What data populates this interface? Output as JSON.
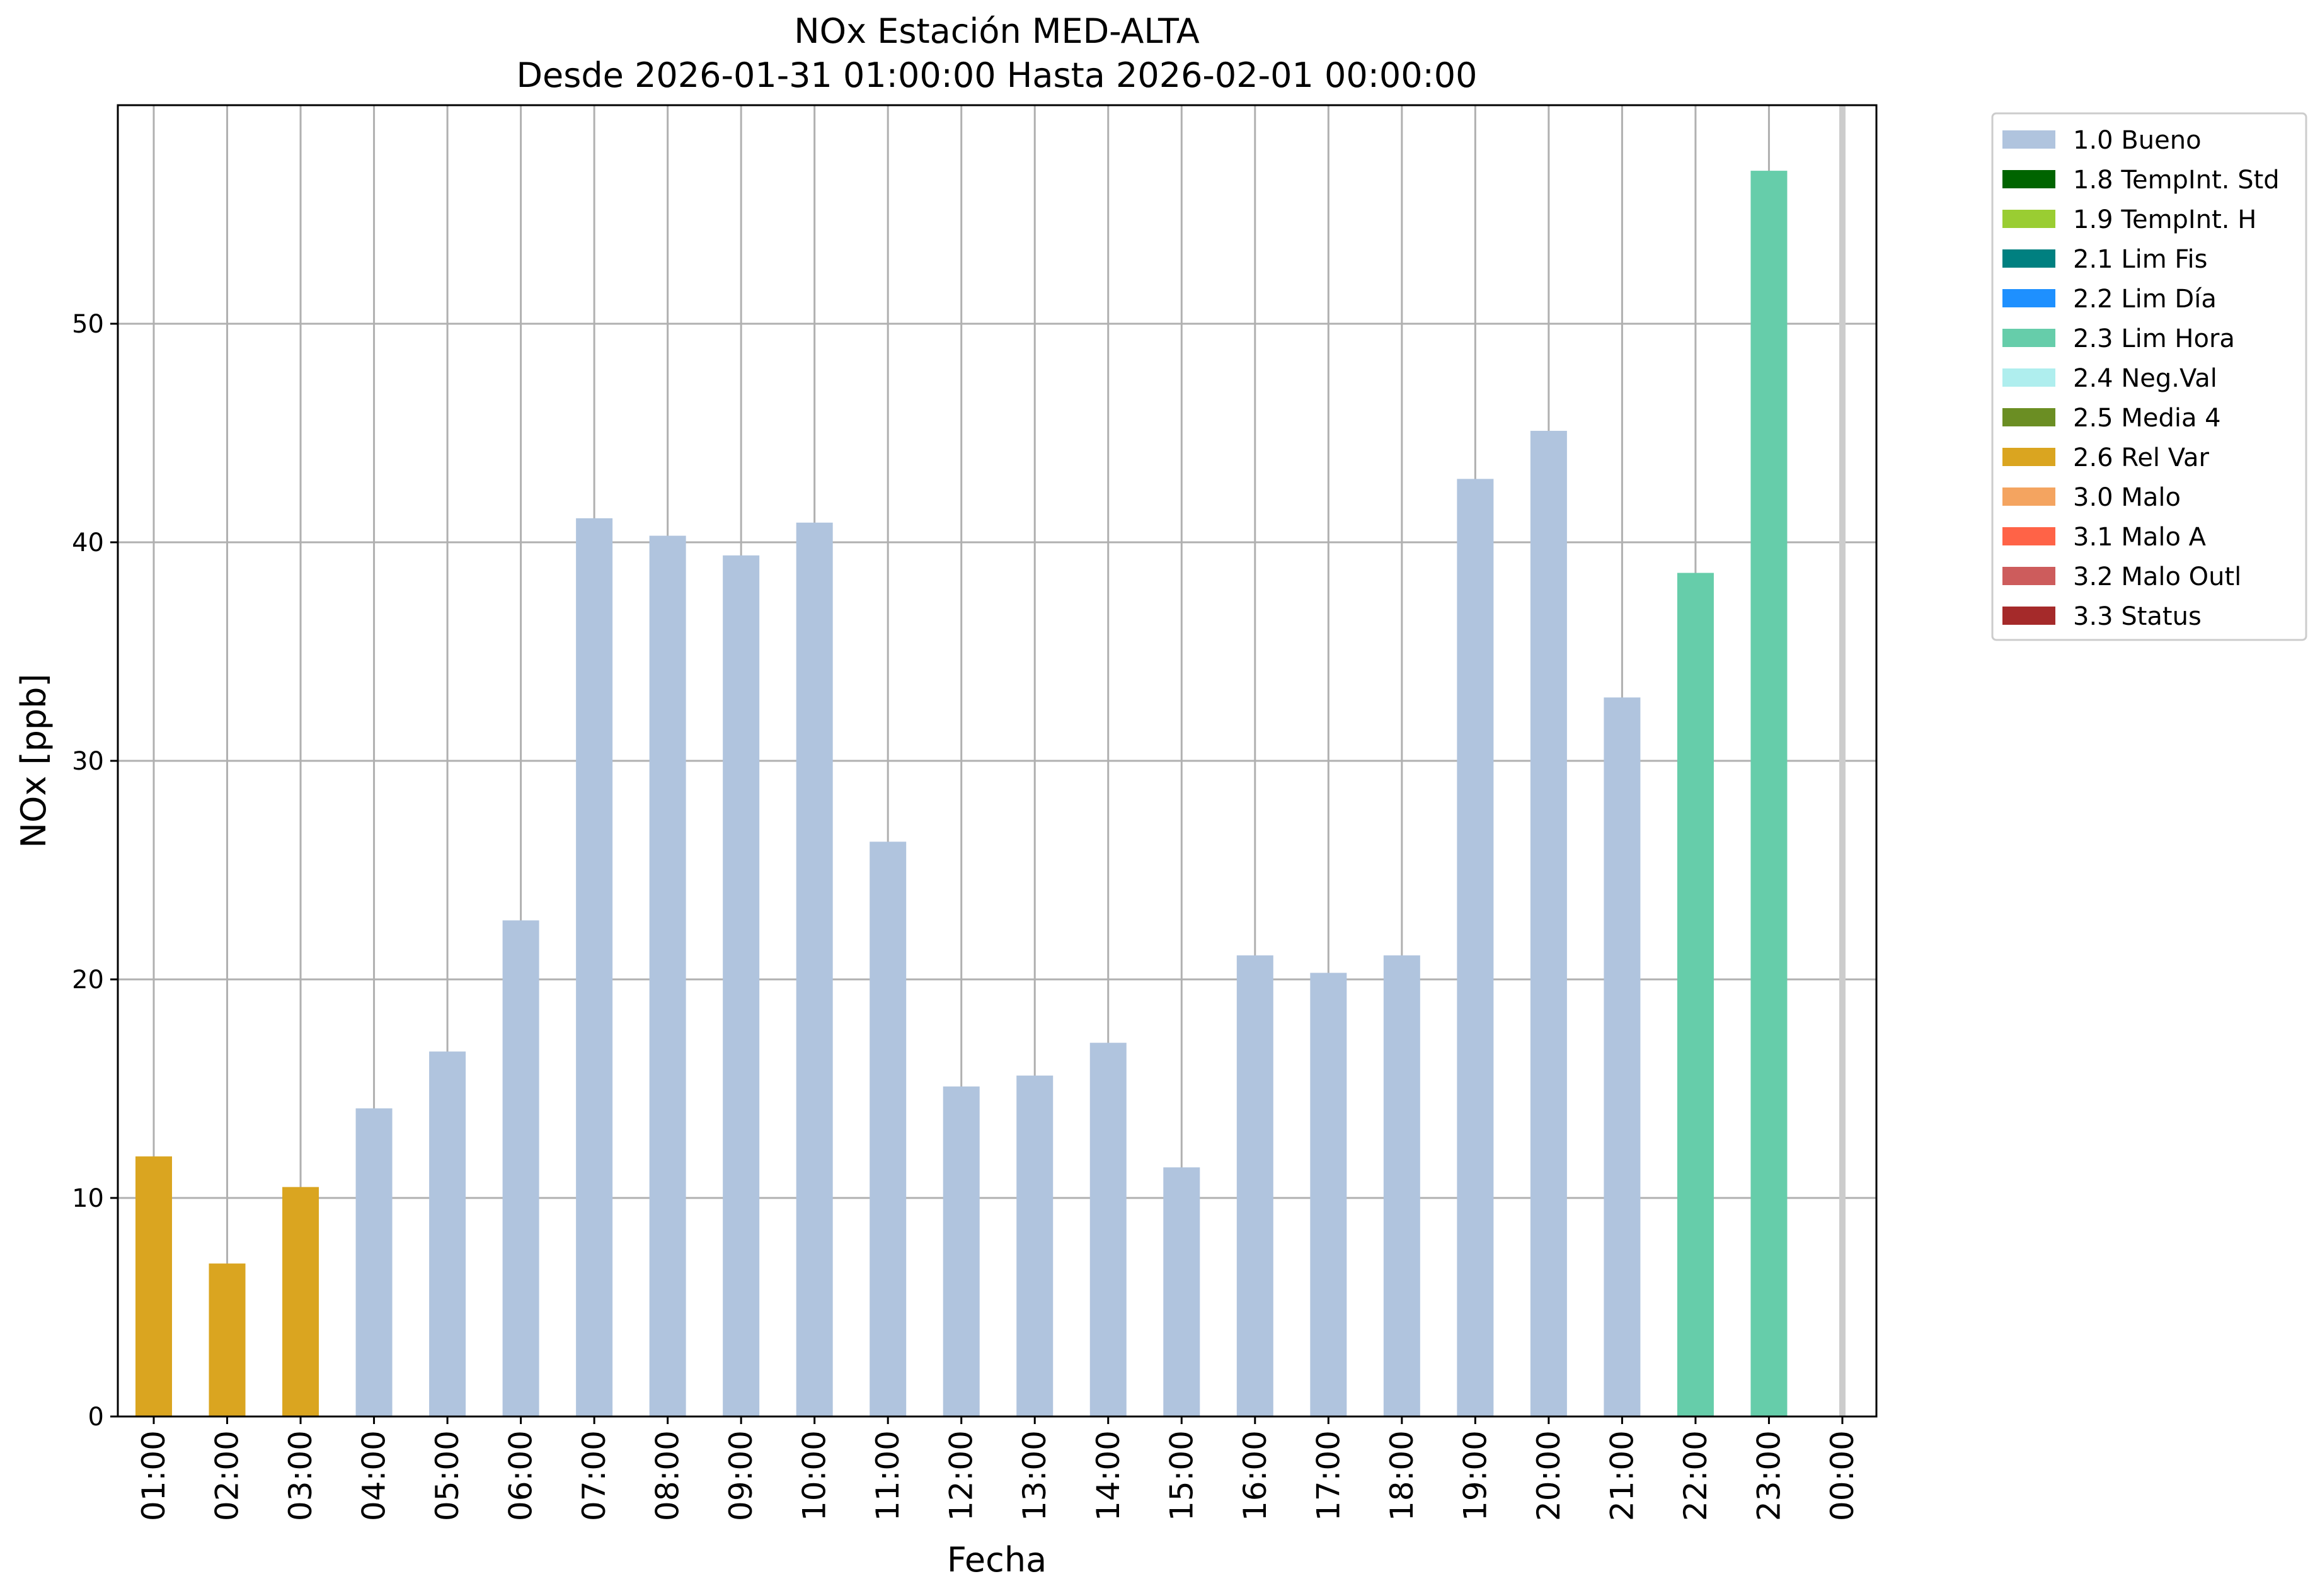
{
  "chart_data": {
    "type": "bar",
    "title": "NOx Estación MED-ALTA",
    "subtitle": "Desde 2026-01-31 01:00:00 Hasta 2026-02-01 00:00:00",
    "xlabel": "Fecha",
    "ylabel": "NOx [ppb]",
    "ylim": [
      0,
      60
    ],
    "yticks": [
      0,
      10,
      20,
      30,
      40,
      50
    ],
    "grid": true,
    "legend_position": "outside-top-right",
    "categories": [
      "01:00",
      "02:00",
      "03:00",
      "04:00",
      "05:00",
      "06:00",
      "07:00",
      "08:00",
      "09:00",
      "10:00",
      "11:00",
      "12:00",
      "13:00",
      "14:00",
      "15:00",
      "16:00",
      "17:00",
      "18:00",
      "19:00",
      "20:00",
      "21:00",
      "22:00",
      "23:00",
      "00:00"
    ],
    "values": [
      11.9,
      7.0,
      10.5,
      14.1,
      16.7,
      22.7,
      41.1,
      40.3,
      39.4,
      40.9,
      26.3,
      15.1,
      15.6,
      17.1,
      11.4,
      21.1,
      20.3,
      21.1,
      42.9,
      45.1,
      32.9,
      38.6,
      57.0,
      null
    ],
    "flags": [
      "2.6 Rel Var",
      "2.6 Rel Var",
      "2.6 Rel Var",
      "1.0 Bueno",
      "1.0 Bueno",
      "1.0 Bueno",
      "1.0 Bueno",
      "1.0 Bueno",
      "1.0 Bueno",
      "1.0 Bueno",
      "1.0 Bueno",
      "1.0 Bueno",
      "1.0 Bueno",
      "1.0 Bueno",
      "1.0 Bueno",
      "1.0 Bueno",
      "1.0 Bueno",
      "1.0 Bueno",
      "1.0 Bueno",
      "1.0 Bueno",
      "1.0 Bueno",
      "2.3 Lim Hora",
      "2.3 Lim Hora",
      null
    ],
    "legend": [
      {
        "label": "1.0 Bueno",
        "color": "#b0c4de"
      },
      {
        "label": "1.8 TempInt. Std",
        "color": "#006400"
      },
      {
        "label": "1.9 TempInt. H",
        "color": "#9acd32"
      },
      {
        "label": "2.1 Lim Fis",
        "color": "#008080"
      },
      {
        "label": "2.2 Lim Día",
        "color": "#1e90ff"
      },
      {
        "label": "2.3 Lim Hora",
        "color": "#66cdaa"
      },
      {
        "label": "2.4 Neg.Val",
        "color": "#afeeee"
      },
      {
        "label": "2.5 Media 4",
        "color": "#6b8e23"
      },
      {
        "label": "2.6 Rel Var",
        "color": "#daa520"
      },
      {
        "label": "3.0 Malo",
        "color": "#f4a460"
      },
      {
        "label": "3.1 Malo A",
        "color": "#ff6347"
      },
      {
        "label": "3.2 Malo Outl",
        "color": "#cd5c5c"
      },
      {
        "label": "3.3 Status",
        "color": "#a52a2a"
      }
    ]
  }
}
